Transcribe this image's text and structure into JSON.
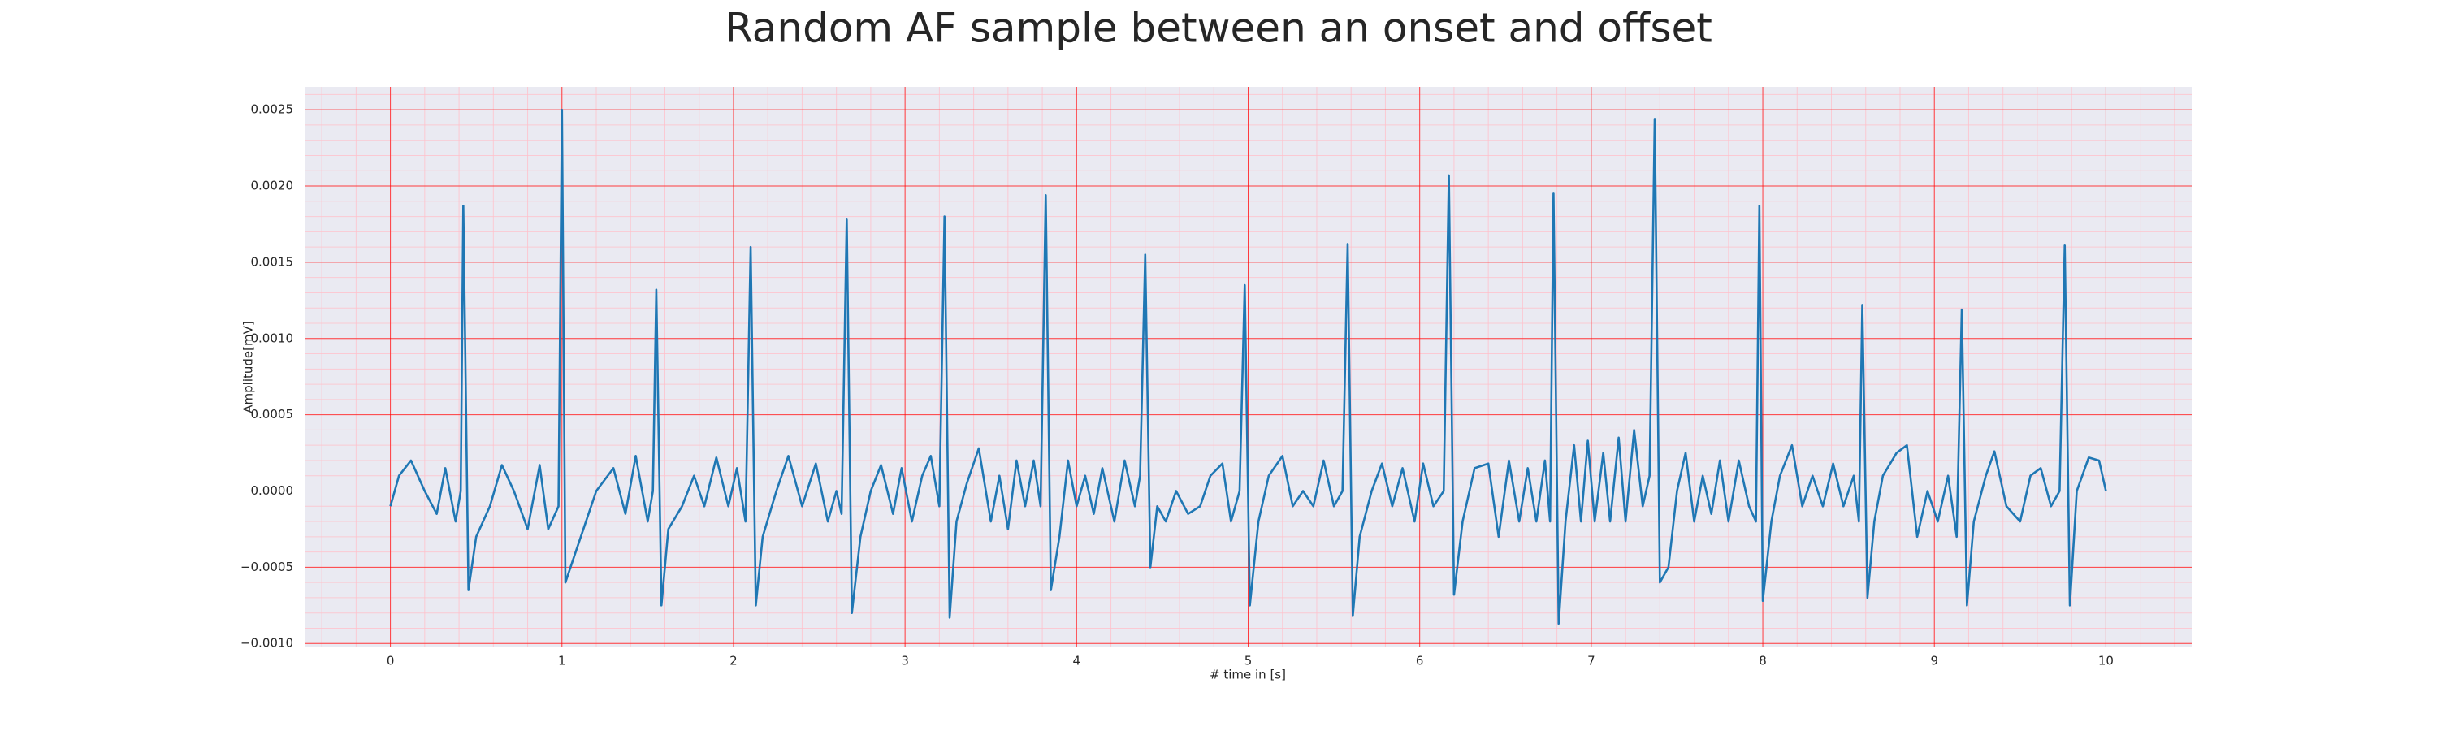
{
  "chart_data": {
    "type": "line",
    "title": "Random AF sample between an onset and offset",
    "xlabel": "# time in [s]",
    "ylabel": "Amplitude[mV]",
    "color": "#1f77b4",
    "background": "#eaeaf2",
    "grid": true,
    "grid_color": "#ff0000",
    "minor_grid_color": "#ffc0cb",
    "xlim": [
      -0.5,
      10.5
    ],
    "ylim": [
      -0.00102,
      0.00265
    ],
    "xticks": [
      0,
      1,
      2,
      3,
      4,
      5,
      6,
      7,
      8,
      9,
      10
    ],
    "yticks": [
      {
        "value": -0.001,
        "label": "−0.0010"
      },
      {
        "value": -0.0005,
        "label": "−0.0005"
      },
      {
        "value": 0,
        "label": "0.0000"
      },
      {
        "value": 0.0005,
        "label": "0.0005"
      },
      {
        "value": 0.001,
        "label": "0.0010"
      },
      {
        "value": 0.0015,
        "label": "0.0015"
      },
      {
        "value": 0.002,
        "label": "0.0020"
      },
      {
        "value": 0.0025,
        "label": "0.0025"
      }
    ],
    "xticks_minor": [
      -0.4,
      -0.2,
      0,
      0.2,
      0.4,
      0.6,
      0.8,
      1,
      1.2,
      1.4,
      1.6,
      1.8,
      2,
      2.2,
      2.4,
      2.6,
      2.8,
      3,
      3.2,
      3.4,
      3.6,
      3.8,
      4,
      4.2,
      4.4,
      4.6,
      4.8,
      5,
      5.2,
      5.4,
      5.6,
      5.8,
      6,
      6.2,
      6.4,
      6.6,
      6.8,
      7,
      7.2,
      7.4,
      7.6,
      7.8,
      8,
      8.2,
      8.4,
      8.6,
      8.8,
      9,
      9.2,
      9.4,
      9.6,
      9.8,
      10,
      10.2,
      10.4
    ],
    "yticks_minor": [
      -0.001,
      -0.0009,
      -0.0008,
      -0.0007,
      -0.0006,
      -0.0005,
      -0.0004,
      -0.0003,
      -0.0002,
      -0.0001,
      0,
      0.0001,
      0.0002,
      0.0003,
      0.0004,
      0.0005,
      0.0006,
      0.0007,
      0.0008,
      0.0009,
      0.001,
      0.0011,
      0.0012,
      0.0013,
      0.0014,
      0.0015,
      0.0016,
      0.0017,
      0.0018,
      0.0019,
      0.002,
      0.0021,
      0.0022,
      0.0023,
      0.0024,
      0.0025,
      0.0026
    ],
    "x": [
      0,
      0.05,
      0.12,
      0.2,
      0.27,
      0.32,
      0.38,
      0.41,
      0.425,
      0.455,
      0.5,
      0.58,
      0.65,
      0.72,
      0.8,
      0.87,
      0.92,
      0.98,
      1,
      1.02,
      1.08,
      1.2,
      1.3,
      1.37,
      1.43,
      1.5,
      1.53,
      1.55,
      1.58,
      1.62,
      1.7,
      1.77,
      1.83,
      1.9,
      1.97,
      2.02,
      2.07,
      2.1,
      2.13,
      2.17,
      2.25,
      2.32,
      2.4,
      2.48,
      2.55,
      2.6,
      2.63,
      2.66,
      2.69,
      2.74,
      2.8,
      2.86,
      2.93,
      2.98,
      3.04,
      3.1,
      3.15,
      3.2,
      3.23,
      3.26,
      3.3,
      3.36,
      3.43,
      3.5,
      3.55,
      3.6,
      3.65,
      3.7,
      3.75,
      3.79,
      3.82,
      3.85,
      3.9,
      3.95,
      4,
      4.05,
      4.1,
      4.15,
      4.22,
      4.28,
      4.34,
      4.37,
      4.4,
      4.43,
      4.47,
      4.52,
      4.58,
      4.65,
      4.72,
      4.78,
      4.85,
      4.9,
      4.95,
      4.98,
      5.01,
      5.06,
      5.12,
      5.2,
      5.26,
      5.32,
      5.38,
      5.44,
      5.5,
      5.55,
      5.58,
      5.61,
      5.65,
      5.72,
      5.78,
      5.84,
      5.9,
      5.97,
      6.02,
      6.08,
      6.14,
      6.17,
      6.2,
      6.25,
      6.32,
      6.4,
      6.46,
      6.52,
      6.58,
      6.63,
      6.68,
      6.73,
      6.76,
      6.78,
      6.81,
      6.85,
      6.9,
      6.94,
      6.98,
      7.02,
      7.07,
      7.11,
      7.16,
      7.2,
      7.25,
      7.3,
      7.34,
      7.37,
      7.4,
      7.45,
      7.5,
      7.55,
      7.6,
      7.65,
      7.7,
      7.75,
      7.8,
      7.86,
      7.92,
      7.96,
      7.98,
      8,
      8.05,
      8.1,
      8.17,
      8.23,
      8.29,
      8.35,
      8.41,
      8.47,
      8.53,
      8.56,
      8.58,
      8.61,
      8.65,
      8.7,
      8.78,
      8.84,
      8.9,
      8.96,
      9.02,
      9.08,
      9.13,
      9.16,
      9.19,
      9.23,
      9.3,
      9.35,
      9.42,
      9.5,
      9.56,
      9.62,
      9.68,
      9.73,
      9.76,
      9.79,
      9.83,
      9.9,
      9.96,
      10
    ],
    "values": [
      -0.0001,
      0.0001,
      0.0002,
      0,
      -0.00015,
      0.00015,
      -0.0002,
      0,
      0.00187,
      -0.00065,
      -0.0003,
      -0.0001,
      0.00017,
      0,
      -0.00025,
      0.00017,
      -0.00025,
      -0.0001,
      0.0025,
      -0.0006,
      -0.0004,
      0,
      0.00015,
      -0.00015,
      0.00023,
      -0.0002,
      0,
      0.00132,
      -0.00075,
      -0.00025,
      -0.0001,
      0.0001,
      -0.0001,
      0.00022,
      -0.0001,
      0.00015,
      -0.0002,
      0.0016,
      -0.00075,
      -0.0003,
      0,
      0.00023,
      -0.0001,
      0.00018,
      -0.0002,
      0,
      -0.00015,
      0.00178,
      -0.0008,
      -0.0003,
      0,
      0.00017,
      -0.00015,
      0.00015,
      -0.0002,
      0.0001,
      0.00023,
      -0.0001,
      0.0018,
      -0.00083,
      -0.0002,
      5e-05,
      0.00028,
      -0.0002,
      0.0001,
      -0.00025,
      0.0002,
      -0.0001,
      0.0002,
      -0.0001,
      0.00194,
      -0.00065,
      -0.0003,
      0.0002,
      -0.0001,
      0.0001,
      -0.00015,
      0.00015,
      -0.0002,
      0.0002,
      -0.0001,
      0.0001,
      0.00155,
      -0.0005,
      -0.0001,
      -0.0002,
      0,
      -0.00015,
      -0.0001,
      0.0001,
      0.00018,
      -0.0002,
      0,
      0.00135,
      -0.00075,
      -0.0002,
      0.0001,
      0.00023,
      -0.0001,
      0,
      -0.0001,
      0.0002,
      -0.0001,
      0,
      0.00162,
      -0.00082,
      -0.0003,
      0,
      0.00018,
      -0.0001,
      0.00015,
      -0.0002,
      0.00018,
      -0.0001,
      0,
      0.00207,
      -0.00068,
      -0.0002,
      0.00015,
      0.00018,
      -0.0003,
      0.0002,
      -0.0002,
      0.00015,
      -0.0002,
      0.0002,
      -0.0002,
      0.00195,
      -0.00087,
      -0.0002,
      0.0003,
      -0.0002,
      0.00033,
      -0.0002,
      0.00025,
      -0.0002,
      0.00035,
      -0.0002,
      0.0004,
      -0.0001,
      0.0001,
      0.00244,
      -0.0006,
      -0.0005,
      0,
      0.00025,
      -0.0002,
      0.0001,
      -0.00015,
      0.0002,
      -0.0002,
      0.0002,
      -0.0001,
      -0.0002,
      0.00187,
      -0.00072,
      -0.0002,
      0.0001,
      0.0003,
      -0.0001,
      0.0001,
      -0.0001,
      0.00018,
      -0.0001,
      0.0001,
      -0.0002,
      0.00122,
      -0.0007,
      -0.0002,
      0.0001,
      0.00025,
      0.0003,
      -0.0003,
      0,
      -0.0002,
      0.0001,
      -0.0003,
      0.00119,
      -0.00075,
      -0.0002,
      0.0001,
      0.00026,
      -0.0001,
      -0.0002,
      0.0001,
      0.00015,
      -0.0001,
      0,
      0.00161,
      -0.00075,
      0,
      0.00022,
      0.0002,
      0
    ]
  }
}
